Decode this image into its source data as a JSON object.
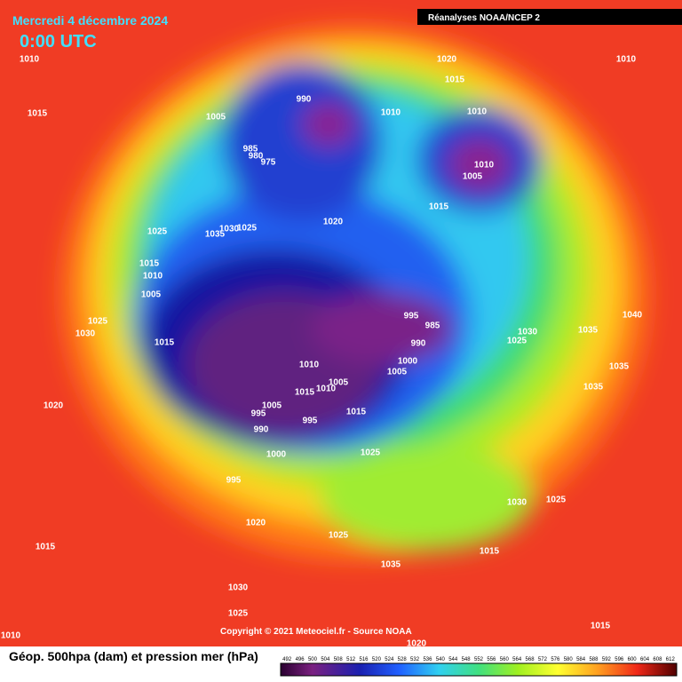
{
  "header": {
    "date": "Mercredi 4 décembre 2024",
    "time": "0:00 UTC",
    "source": "Réanalyses NOAA/NCEP 2"
  },
  "footer": {
    "copyright": "Copyright © 2021 Meteociel.fr - Source NOAA",
    "legend": "Géop. 500hpa (dam) et pression mer (hPa)"
  },
  "colorbar": {
    "labels": [
      492,
      496,
      500,
      504,
      508,
      512,
      516,
      520,
      524,
      528,
      532,
      536,
      540,
      544,
      548,
      552,
      556,
      560,
      564,
      568,
      572,
      576,
      580,
      584,
      588,
      592,
      596,
      600,
      604,
      608,
      612
    ]
  },
  "isobars": {
    "labels": [
      "1010",
      "1020",
      "1015",
      "1010",
      "1015",
      "990",
      "1010",
      "1010",
      "1005",
      "985",
      "980",
      "975",
      "1010",
      "1005",
      "1015",
      "1020",
      "1025",
      "1035",
      "1030",
      "1025",
      "1015",
      "1010",
      "1005",
      "1025",
      "1030",
      "1015",
      "995",
      "985",
      "990",
      "1030",
      "1025",
      "1035",
      "1040",
      "1035",
      "1000",
      "1005",
      "1010",
      "1005",
      "1015",
      "1010",
      "1035",
      "1020",
      "1005",
      "995",
      "995",
      "1015",
      "990",
      "1000",
      "1025",
      "995",
      "1030",
      "1025",
      "1020",
      "1025",
      "1015",
      "1035",
      "1015",
      "1030",
      "1025",
      "1010",
      "1020",
      "1015"
    ]
  }
}
